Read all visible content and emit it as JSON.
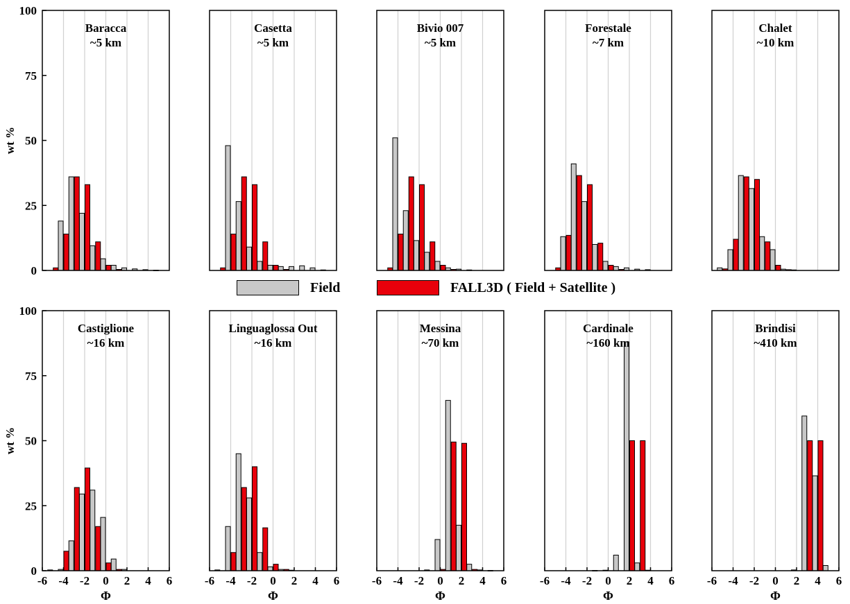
{
  "chart_data": {
    "type": "bar",
    "colors": {
      "field": "#c8c8c8",
      "model": "#e8000b",
      "grid": "#d0d0d0",
      "axis": "#000000"
    },
    "legend": [
      {
        "key": "field",
        "label": "Field"
      },
      {
        "key": "model",
        "label": "FALL3D ( Field + Satellite )"
      }
    ],
    "x_ticks": [
      "-6",
      "-4",
      "-2",
      "0",
      "2",
      "4",
      "6"
    ],
    "y_ticks": [
      "0",
      "25",
      "50",
      "75",
      "100"
    ],
    "xlim": [
      -6,
      6
    ],
    "ylim": [
      0,
      100
    ],
    "xlabel": "Φ",
    "ylabel": "wt %",
    "panels": [
      {
        "name": "Baracca",
        "distance": "~5 km",
        "field": [
          {
            "x": -4,
            "y": 19
          },
          {
            "x": -3,
            "y": 36
          },
          {
            "x": -2,
            "y": 22
          },
          {
            "x": -1,
            "y": 9.5
          },
          {
            "x": 0,
            "y": 4.5
          },
          {
            "x": 1,
            "y": 2
          },
          {
            "x": 2,
            "y": 1
          },
          {
            "x": 3,
            "y": 0.6
          },
          {
            "x": 4,
            "y": 0.3
          },
          {
            "x": 5,
            "y": 0.1
          }
        ],
        "model": [
          {
            "x": -5,
            "y": 1
          },
          {
            "x": -4,
            "y": 14
          },
          {
            "x": -3,
            "y": 36
          },
          {
            "x": -2,
            "y": 33
          },
          {
            "x": -1,
            "y": 11
          },
          {
            "x": 0,
            "y": 2
          },
          {
            "x": 1,
            "y": 0.4
          }
        ]
      },
      {
        "name": "Casetta",
        "distance": "~5 km",
        "field": [
          {
            "x": -4,
            "y": 48
          },
          {
            "x": -3,
            "y": 26.5
          },
          {
            "x": -2,
            "y": 9
          },
          {
            "x": -1,
            "y": 3.5
          },
          {
            "x": 0,
            "y": 2
          },
          {
            "x": 1,
            "y": 1.5
          },
          {
            "x": 2,
            "y": 1.5
          },
          {
            "x": 3,
            "y": 1.8
          },
          {
            "x": 4,
            "y": 1
          },
          {
            "x": 5,
            "y": 0.2
          }
        ],
        "model": [
          {
            "x": -5,
            "y": 1
          },
          {
            "x": -4,
            "y": 14
          },
          {
            "x": -3,
            "y": 36
          },
          {
            "x": -2,
            "y": 33
          },
          {
            "x": -1,
            "y": 11
          },
          {
            "x": 0,
            "y": 2
          },
          {
            "x": 1,
            "y": 0.4
          }
        ]
      },
      {
        "name": "Bivio 007",
        "distance": "~5 km",
        "field": [
          {
            "x": -4,
            "y": 51
          },
          {
            "x": -3,
            "y": 23
          },
          {
            "x": -2,
            "y": 11.5
          },
          {
            "x": -1,
            "y": 7
          },
          {
            "x": 0,
            "y": 3.5
          },
          {
            "x": 1,
            "y": 1
          },
          {
            "x": 2,
            "y": 0.5
          },
          {
            "x": 3,
            "y": 0.2
          }
        ],
        "model": [
          {
            "x": -5,
            "y": 1
          },
          {
            "x": -4,
            "y": 14
          },
          {
            "x": -3,
            "y": 36
          },
          {
            "x": -2,
            "y": 33
          },
          {
            "x": -1,
            "y": 11
          },
          {
            "x": 0,
            "y": 2
          },
          {
            "x": 1,
            "y": 0.4
          }
        ]
      },
      {
        "name": "Forestale",
        "distance": "~7 km",
        "field": [
          {
            "x": -4,
            "y": 13
          },
          {
            "x": -3,
            "y": 41
          },
          {
            "x": -2,
            "y": 26.5
          },
          {
            "x": -1,
            "y": 10
          },
          {
            "x": 0,
            "y": 3.5
          },
          {
            "x": 1,
            "y": 1.5
          },
          {
            "x": 2,
            "y": 1
          },
          {
            "x": 3,
            "y": 0.5
          },
          {
            "x": 4,
            "y": 0.3
          }
        ],
        "model": [
          {
            "x": -5,
            "y": 1
          },
          {
            "x": -4,
            "y": 13.5
          },
          {
            "x": -3,
            "y": 36.5
          },
          {
            "x": -2,
            "y": 33
          },
          {
            "x": -1,
            "y": 10.5
          },
          {
            "x": 0,
            "y": 2
          },
          {
            "x": 1,
            "y": 0.4
          }
        ]
      },
      {
        "name": "Chalet",
        "distance": "~10 km",
        "field": [
          {
            "x": -5,
            "y": 1
          },
          {
            "x": -4,
            "y": 8
          },
          {
            "x": -3,
            "y": 36.5
          },
          {
            "x": -2,
            "y": 31.5
          },
          {
            "x": -1,
            "y": 13
          },
          {
            "x": 0,
            "y": 8
          },
          {
            "x": 1,
            "y": 0.5
          },
          {
            "x": 2,
            "y": 0.2
          }
        ],
        "model": [
          {
            "x": -5,
            "y": 0.6
          },
          {
            "x": -4,
            "y": 12
          },
          {
            "x": -3,
            "y": 36
          },
          {
            "x": -2,
            "y": 35
          },
          {
            "x": -1,
            "y": 11
          },
          {
            "x": 0,
            "y": 2
          },
          {
            "x": 1,
            "y": 0.3
          }
        ]
      },
      {
        "name": "Castiglione",
        "distance": "~16 km",
        "field": [
          {
            "x": -5,
            "y": 0.3
          },
          {
            "x": -4,
            "y": 0.5
          },
          {
            "x": -3,
            "y": 11.5
          },
          {
            "x": -2,
            "y": 29.5
          },
          {
            "x": -1,
            "y": 31
          },
          {
            "x": 0,
            "y": 20.5
          },
          {
            "x": 1,
            "y": 4.5
          },
          {
            "x": 2,
            "y": 0.5
          }
        ],
        "model": [
          {
            "x": -4,
            "y": 7.5
          },
          {
            "x": -3,
            "y": 32
          },
          {
            "x": -2,
            "y": 39.5
          },
          {
            "x": -1,
            "y": 17
          },
          {
            "x": 0,
            "y": 3
          },
          {
            "x": 1,
            "y": 0.5
          }
        ]
      },
      {
        "name": "Linguaglossa Out",
        "distance": "~16 km",
        "field": [
          {
            "x": -5,
            "y": 0.3
          },
          {
            "x": -4,
            "y": 17
          },
          {
            "x": -3,
            "y": 45
          },
          {
            "x": -2,
            "y": 28
          },
          {
            "x": -1,
            "y": 7
          },
          {
            "x": 0,
            "y": 1.5
          },
          {
            "x": 1,
            "y": 0.5
          },
          {
            "x": 2,
            "y": 0.2
          }
        ],
        "model": [
          {
            "x": -4,
            "y": 7
          },
          {
            "x": -3,
            "y": 32
          },
          {
            "x": -2,
            "y": 40
          },
          {
            "x": -1,
            "y": 16.5
          },
          {
            "x": 0,
            "y": 2.5
          },
          {
            "x": 1,
            "y": 0.5
          }
        ]
      },
      {
        "name": "Messina",
        "distance": "~70 km",
        "field": [
          {
            "x": -1,
            "y": 0.3
          },
          {
            "x": 0,
            "y": 12
          },
          {
            "x": 1,
            "y": 65.5
          },
          {
            "x": 2,
            "y": 17.5
          },
          {
            "x": 3,
            "y": 2.5
          },
          {
            "x": 4,
            "y": 0.3
          },
          {
            "x": 5,
            "y": 0.1
          }
        ],
        "model": [
          {
            "x": 0,
            "y": 0.5
          },
          {
            "x": 1,
            "y": 49.5
          },
          {
            "x": 2,
            "y": 49
          },
          {
            "x": 3,
            "y": 0.5
          }
        ]
      },
      {
        "name": "Cardinale",
        "distance": "~160 km",
        "field": [
          {
            "x": -1,
            "y": 0.1
          },
          {
            "x": 0,
            "y": 0.2
          },
          {
            "x": 1,
            "y": 6
          },
          {
            "x": 2,
            "y": 88
          },
          {
            "x": 3,
            "y": 3
          },
          {
            "x": 4,
            "y": 0.2
          }
        ],
        "model": [
          {
            "x": 2,
            "y": 50
          },
          {
            "x": 3,
            "y": 50
          }
        ]
      },
      {
        "name": "Brindisi",
        "distance": "~410 km",
        "field": [
          {
            "x": 2,
            "y": 0.3
          },
          {
            "x": 3,
            "y": 59.5
          },
          {
            "x": 4,
            "y": 36.5
          },
          {
            "x": 5,
            "y": 2
          }
        ],
        "model": [
          {
            "x": 3,
            "y": 50
          },
          {
            "x": 4,
            "y": 50
          }
        ]
      }
    ]
  }
}
